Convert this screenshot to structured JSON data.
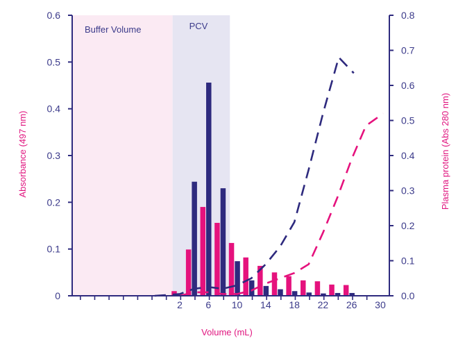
{
  "chart_data": {
    "type": "bar",
    "xlabel": "Volume (mL)",
    "ylabel_left": "Absorbance (497 nm)",
    "ylabel_right": "Plasma protein (Abs 280 nm)",
    "ylim_left": [
      0,
      0.6
    ],
    "ylim_right": [
      0,
      0.8
    ],
    "y_ticks_left": [
      "0",
      "0.1",
      "0.2",
      "0.3",
      "0.4",
      "0.5",
      "0.6"
    ],
    "y_ticks_right": [
      "0.0",
      "0.1",
      "0.2",
      "0.3",
      "0.4",
      "0.5",
      "0.6",
      "0.7",
      "0.8"
    ],
    "x_ticks": [
      "2",
      "6",
      "10",
      "14",
      "18",
      "22",
      "26",
      "30"
    ],
    "regions": [
      {
        "label": "Buffer Volume",
        "from": -14,
        "to": 1,
        "color": "#fbeaf3"
      },
      {
        "label": "PCV",
        "from": 1,
        "to": 9,
        "color": "#e6e5f2"
      }
    ],
    "categories": [
      2,
      4,
      6,
      8,
      10,
      12,
      14,
      16,
      18,
      20,
      22,
      24,
      26
    ],
    "series": [
      {
        "name": "Absorbance pink bars",
        "axis": "left",
        "kind": "bar",
        "color": "#e5127d",
        "values": [
          0.01,
          0.099,
          0.19,
          0.156,
          0.113,
          0.082,
          0.064,
          0.05,
          0.042,
          0.033,
          0.031,
          0.024,
          0.023
        ]
      },
      {
        "name": "Absorbance navy bars",
        "axis": "left",
        "kind": "bar",
        "color": "#2e2a7e",
        "values": [
          0.002,
          0.244,
          0.456,
          0.23,
          0.074,
          0.033,
          0.021,
          0.014,
          0.01,
          0.007,
          0.005,
          0.006,
          0.006
        ]
      },
      {
        "name": "Plasma protein navy dashed",
        "axis": "right",
        "kind": "line",
        "color": "#2e2a7e",
        "x": [
          -1.5,
          0,
          2,
          4,
          6,
          8,
          10,
          12,
          14,
          16,
          18,
          20,
          22,
          24.2,
          26.3
        ],
        "values": [
          0,
          0.002,
          0.005,
          0.02,
          0.025,
          0.02,
          0.03,
          0.05,
          0.09,
          0.14,
          0.21,
          0.36,
          0.52,
          0.68,
          0.635
        ]
      },
      {
        "name": "Plasma protein pink dashed",
        "axis": "right",
        "kind": "line",
        "color": "#e5127d",
        "x": [
          2,
          4,
          6,
          8,
          10,
          12,
          14,
          16,
          18,
          20,
          22,
          24,
          26,
          28,
          30.4
        ],
        "values": [
          0,
          0.01,
          0.01,
          0.005,
          0.005,
          0.015,
          0.035,
          0.05,
          0.065,
          0.09,
          0.18,
          0.28,
          0.39,
          0.485,
          0.52
        ]
      }
    ]
  }
}
